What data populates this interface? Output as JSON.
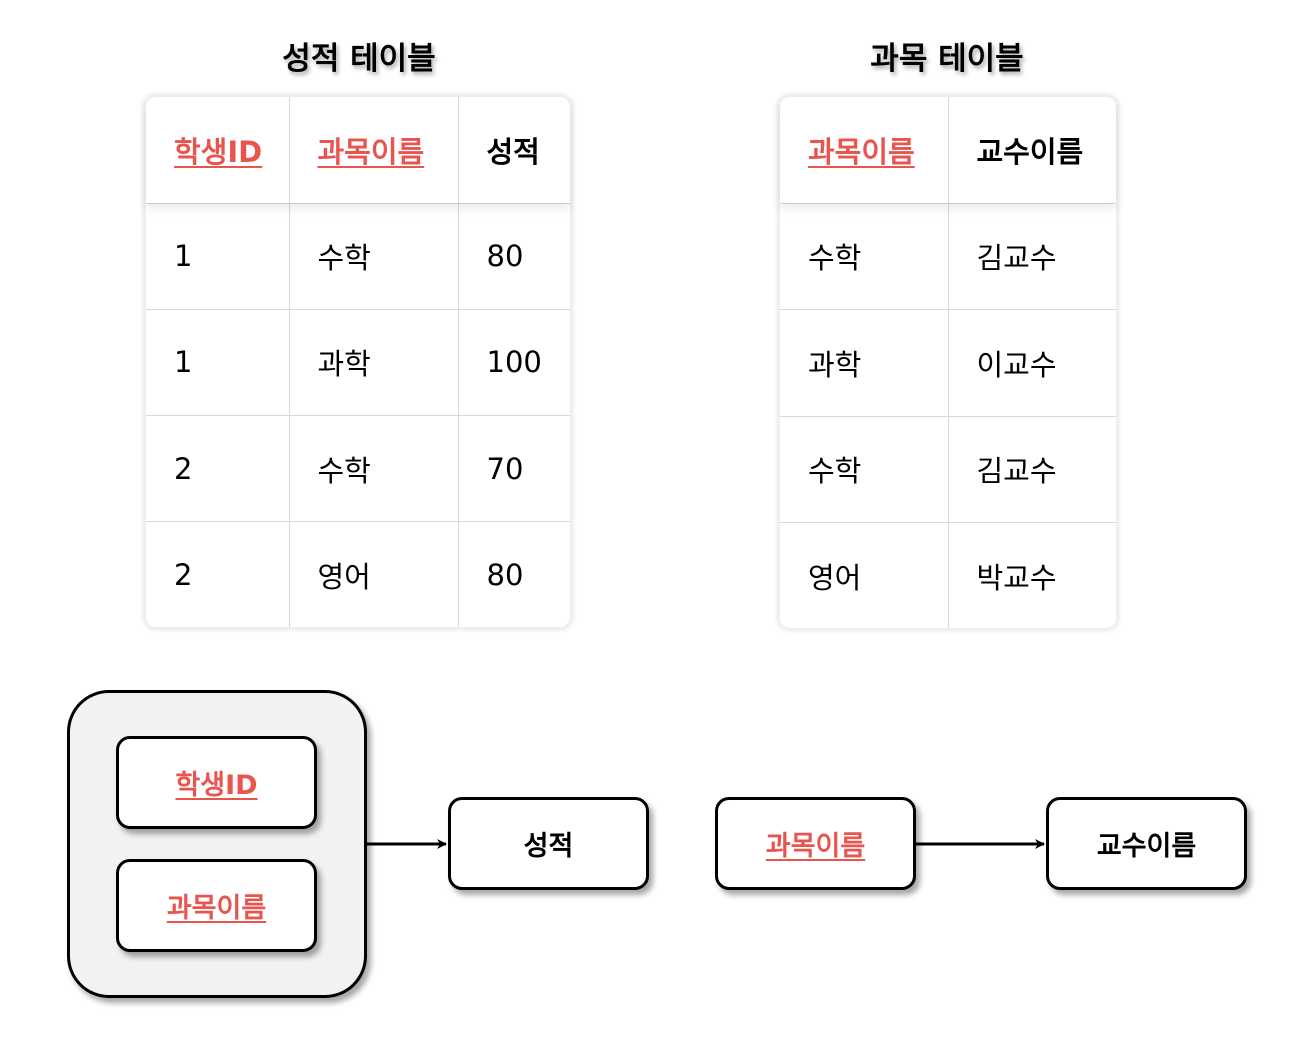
{
  "grades_table": {
    "title": "성적 테이블",
    "headers": [
      "학생ID",
      "과목이름",
      "성적"
    ],
    "key_columns": [
      0,
      1
    ],
    "rows": [
      [
        "1",
        "수학",
        "80"
      ],
      [
        "1",
        "과학",
        "100"
      ],
      [
        "2",
        "수학",
        "70"
      ],
      [
        "2",
        "영어",
        "80"
      ]
    ]
  },
  "subjects_table": {
    "title": "과목 테이블",
    "headers": [
      "과목이름",
      "교수이름"
    ],
    "key_columns": [
      0
    ],
    "rows": [
      [
        "수학",
        "김교수"
      ],
      [
        "과학",
        "이교수"
      ],
      [
        "수학",
        "김교수"
      ],
      [
        "영어",
        "박교수"
      ]
    ]
  },
  "dependency_diagram": {
    "composite_key": [
      "학생ID",
      "과목이름"
    ],
    "grade_target": "성적",
    "subject_key": "과목이름",
    "professor_target": "교수이름"
  },
  "colors": {
    "key": "#e8554f",
    "group_fill": "#f2f2f2"
  }
}
